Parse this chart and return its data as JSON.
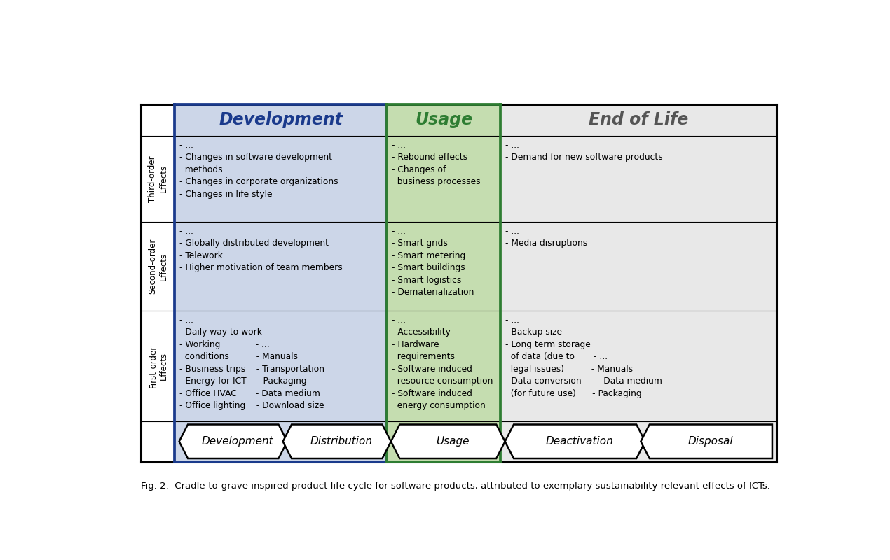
{
  "caption": "Fig. 2.  Cradle-to-grave inspired product life cycle for software products, attributed to exemplary sustainability relevant effects of ICTs.",
  "col_headers": [
    "Development",
    "Usage",
    "End of Life"
  ],
  "row_header_texts": [
    "Third-order\nEffects",
    "Second-order\nEffects",
    "First-order\nEffects"
  ],
  "dev_bg": "#ccd6e8",
  "usage_bg": "#c5ddb0",
  "eol_bg": "#e8e8e8",
  "white_bg": "#ffffff",
  "dev_border": "#1a3a8c",
  "usage_border": "#2e7d32",
  "black": "#000000",
  "dev_header_color": "#1a3a8c",
  "usage_header_color": "#2e7d32",
  "eol_header_color": "#555555",
  "cell_contents": {
    "r0c0": "- ...\n- Changes in software development\n  methods\n- Changes in corporate organizations\n- Changes in life style",
    "r0c1": "- ...\n- Rebound effects\n- Changes of\n  business processes",
    "r0c2": "- ...\n- Demand for new software products",
    "r1c0": "- ...\n- Globally distributed development\n- Telework\n- Higher motivation of team members",
    "r1c1": "- ...\n- Smart grids\n- Smart metering\n- Smart buildings\n- Smart logistics\n- Dematerialization",
    "r1c2": "- ...\n- Media disruptions",
    "r2c0": "- ...\n- Daily way to work\n- Working             - ...\n  conditions          - Manuals\n- Business trips    - Transportation\n- Energy for ICT    - Packaging\n- Office HVAC       - Data medium\n- Office lighting    - Download size",
    "r2c1": "- ...\n- Accessibility\n- Hardware\n  requirements\n- Software induced\n  resource consumption\n- Software induced\n  energy consumption",
    "r2c2": "- ...\n- Backup size\n- Long term storage\n  of data (due to       - ...\n  legal issues)          - Manuals\n- Data conversion      - Data medium\n  (for future use)      - Packaging"
  },
  "arrow_labels": [
    "Development",
    "Distribution",
    "Usage",
    "Deactivation",
    "Disposal"
  ]
}
